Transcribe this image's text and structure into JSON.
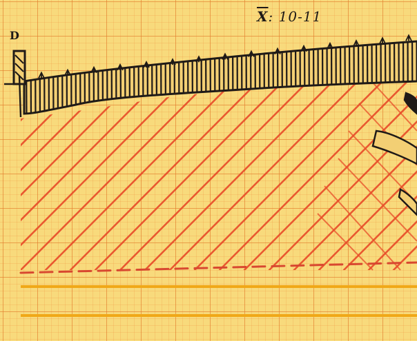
{
  "labels": {
    "title_symbol": "X",
    "title_rest": ": 10-11",
    "marker": "D"
  },
  "colors": {
    "paper": "#f8da7c",
    "grid": "#e07828",
    "ink": "#1f1a17",
    "hatch": "#e84e2a",
    "band": "#f0a818"
  }
}
